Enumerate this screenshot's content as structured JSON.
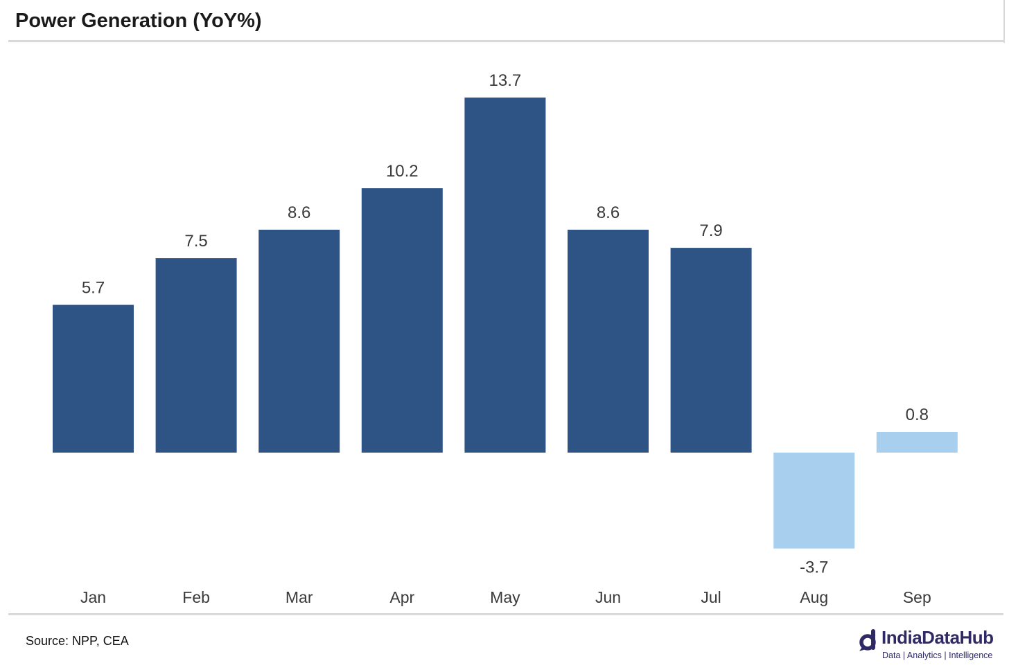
{
  "title": "Power Generation (YoY%)",
  "source": "Source: NPP, CEA",
  "logo": {
    "name": "IndiaDataHub",
    "tagline": "Data | Analytics | Intelligence"
  },
  "colors": {
    "primary_bar": "#2e5385",
    "highlight_bar": "#a9cfef",
    "label_text": "#3a3a3a",
    "rule": "#d9d9d9",
    "logo": "#2f2a63"
  },
  "chart_data": {
    "type": "bar",
    "title": "Power Generation (YoY%)",
    "categories": [
      "Jan",
      "Feb",
      "Mar",
      "Apr",
      "May",
      "Jun",
      "Jul",
      "Aug",
      "Sep"
    ],
    "values": [
      5.7,
      7.5,
      8.6,
      10.2,
      13.7,
      8.6,
      7.9,
      -3.7,
      0.8
    ],
    "data_labels": [
      "5.7",
      "7.5",
      "8.6",
      "10.2",
      "13.7",
      "8.6",
      "7.9",
      "-3.7",
      "0.8"
    ],
    "bar_colors": [
      "#2e5385",
      "#2e5385",
      "#2e5385",
      "#2e5385",
      "#2e5385",
      "#2e5385",
      "#2e5385",
      "#a9cfef",
      "#a9cfef"
    ],
    "xlabel": "",
    "ylabel": "",
    "ylim": [
      -4.5,
      15.5
    ],
    "grid": false,
    "legend": "none"
  }
}
